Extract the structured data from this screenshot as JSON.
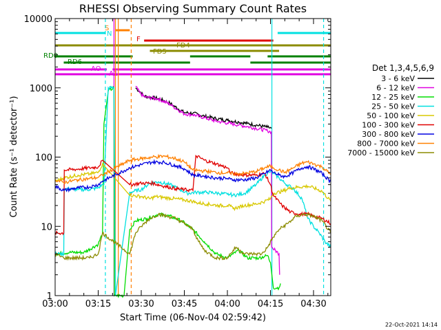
{
  "chart_data": {
    "type": "line",
    "title": "RHESSI Observing Summary Count Rates",
    "xlabel": "Start Time (06-Nov-04 02:59:42)",
    "ylabel": "Count Rate (s⁻¹ detector⁻¹)",
    "yscale": "log",
    "xlim_minutes_after_0300": [
      0,
      96
    ],
    "ylim": [
      1,
      10000
    ],
    "x_ticks": [
      "03:00",
      "03:15",
      "03:30",
      "03:45",
      "04:00",
      "04:15",
      "04:30"
    ],
    "x_tick_minutes": [
      0,
      15,
      30,
      45,
      60,
      75,
      90
    ],
    "y_ticks": [
      "1",
      "10",
      "100",
      "1000",
      "10000"
    ],
    "y_tick_values": [
      1,
      10,
      100,
      1000,
      10000
    ],
    "grid": false,
    "legend_title": "Det 1,3,4,5,6,9",
    "legend_position": "right",
    "series": [
      {
        "name": "3 - 6 keV",
        "color": "#000000",
        "points": [
          [
            28,
            1000
          ],
          [
            29.5,
            880
          ],
          [
            31,
            760
          ],
          [
            36,
            700
          ],
          [
            40,
            600
          ],
          [
            41,
            560
          ],
          [
            45,
            440
          ],
          [
            48,
            430
          ],
          [
            52,
            390
          ],
          [
            56,
            360
          ],
          [
            60,
            340
          ],
          [
            64,
            320
          ],
          [
            67,
            305
          ],
          [
            70,
            290
          ],
          [
            74,
            270
          ],
          [
            75.3,
            260
          ]
        ]
      },
      {
        "name": "6 - 12 keV",
        "color": "#e000e0",
        "points": [
          [
            28,
            1050
          ],
          [
            29.5,
            850
          ],
          [
            31,
            740
          ],
          [
            36,
            690
          ],
          [
            40,
            580
          ],
          [
            41,
            540
          ],
          [
            45,
            420
          ],
          [
            48,
            410
          ],
          [
            52,
            370
          ],
          [
            56,
            330
          ],
          [
            60,
            310
          ],
          [
            64,
            290
          ],
          [
            67,
            275
          ],
          [
            70,
            260
          ],
          [
            74,
            240
          ],
          [
            75.3,
            230
          ],
          [
            75.4,
            5
          ],
          [
            78,
            4
          ],
          [
            78.2,
            2
          ]
        ]
      },
      {
        "name": "12 - 25 keV",
        "color": "#00dd00",
        "points": [
          [
            0,
            4
          ],
          [
            5,
            4.2
          ],
          [
            10,
            4.2
          ],
          [
            15,
            5.5
          ],
          [
            16.5,
            8
          ],
          [
            17,
            300
          ],
          [
            18.5,
            900
          ],
          [
            20.5,
            1000
          ],
          [
            20.6,
            1
          ],
          [
            24,
            1
          ],
          [
            26,
            9
          ],
          [
            28,
            12
          ],
          [
            32,
            13
          ],
          [
            36,
            15
          ],
          [
            40,
            14
          ],
          [
            44,
            12
          ],
          [
            48,
            9
          ],
          [
            52,
            6
          ],
          [
            56,
            4
          ],
          [
            60,
            3.5
          ],
          [
            62,
            4
          ],
          [
            64,
            4.5
          ],
          [
            67,
            3.5
          ],
          [
            71,
            3.5
          ],
          [
            74,
            3.8
          ],
          [
            75,
            3
          ],
          [
            76,
            1.3
          ],
          [
            78,
            1.3
          ],
          [
            78.5,
            1.5
          ]
        ]
      },
      {
        "name": "25 - 50 keV",
        "color": "#00e0e0",
        "points": [
          [
            0,
            4
          ],
          [
            3,
            4
          ],
          [
            3.2,
            35
          ],
          [
            8,
            34
          ],
          [
            12,
            34
          ],
          [
            15,
            36
          ],
          [
            16.5,
            40
          ],
          [
            17,
            40
          ],
          [
            18.5,
            1000
          ],
          [
            20.5,
            1000
          ],
          [
            21,
            1
          ],
          [
            26,
            31
          ],
          [
            30,
            34
          ],
          [
            33,
            42
          ],
          [
            36,
            44
          ],
          [
            40,
            40
          ],
          [
            43,
            35
          ],
          [
            46,
            30
          ],
          [
            49,
            31
          ],
          [
            53,
            31
          ],
          [
            57,
            30
          ],
          [
            60,
            29
          ],
          [
            61,
            29
          ],
          [
            62,
            28
          ],
          [
            66,
            30
          ],
          [
            70,
            40
          ],
          [
            73,
            55
          ],
          [
            75,
            62
          ],
          [
            76,
            58
          ],
          [
            78,
            50
          ],
          [
            80,
            42
          ],
          [
            83,
            35
          ],
          [
            86,
            25
          ],
          [
            88,
            13
          ],
          [
            90,
            10
          ],
          [
            92,
            8
          ],
          [
            94,
            6
          ],
          [
            96,
            5
          ]
        ]
      },
      {
        "name": "50 - 100 keV",
        "color": "#d8c800",
        "points": [
          [
            0,
            45
          ],
          [
            3,
            50
          ],
          [
            8,
            55
          ],
          [
            12,
            57
          ],
          [
            15,
            60
          ],
          [
            16.5,
            80
          ],
          [
            26,
            28
          ],
          [
            30,
            27
          ],
          [
            33,
            25
          ],
          [
            35,
            27
          ],
          [
            38,
            26
          ],
          [
            42,
            25
          ],
          [
            45,
            24
          ],
          [
            48,
            23
          ],
          [
            49,
            22
          ],
          [
            53,
            21
          ],
          [
            57,
            20
          ],
          [
            60,
            20
          ],
          [
            61,
            19.5
          ],
          [
            62,
            18
          ],
          [
            66,
            20
          ],
          [
            70,
            21
          ],
          [
            73,
            23
          ],
          [
            75,
            25
          ],
          [
            76,
            30
          ],
          [
            79,
            32
          ],
          [
            82,
            36
          ],
          [
            85,
            37
          ],
          [
            88,
            38
          ],
          [
            90,
            36
          ],
          [
            93,
            32
          ],
          [
            96,
            23
          ]
        ]
      },
      {
        "name": "100 - 300 keV",
        "color": "#e00000",
        "points": [
          [
            0,
            8
          ],
          [
            3,
            8
          ],
          [
            3.2,
            65
          ],
          [
            8,
            67
          ],
          [
            12,
            70
          ],
          [
            15,
            72
          ],
          [
            16.5,
            90
          ],
          [
            26,
            40
          ],
          [
            30,
            42
          ],
          [
            34,
            42
          ],
          [
            38,
            38
          ],
          [
            42,
            35
          ],
          [
            45,
            34
          ],
          [
            48,
            33
          ],
          [
            49,
            105
          ],
          [
            52,
            90
          ],
          [
            56,
            80
          ],
          [
            60,
            70
          ],
          [
            61,
            60
          ],
          [
            62,
            58
          ],
          [
            66,
            55
          ],
          [
            70,
            55
          ],
          [
            73,
            58
          ],
          [
            75,
            40
          ],
          [
            76,
            28
          ],
          [
            79,
            20
          ],
          [
            82,
            16
          ],
          [
            85,
            15
          ],
          [
            88,
            15
          ],
          [
            90,
            14
          ],
          [
            93,
            13
          ],
          [
            96,
            11
          ]
        ]
      },
      {
        "name": "300 - 800 keV",
        "color": "#0000e0",
        "points": [
          [
            0,
            38
          ],
          [
            3,
            33
          ],
          [
            8,
            36
          ],
          [
            12,
            37
          ],
          [
            15,
            40
          ],
          [
            16.5,
            45
          ],
          [
            26,
            70
          ],
          [
            30,
            78
          ],
          [
            34,
            85
          ],
          [
            38,
            84
          ],
          [
            42,
            75
          ],
          [
            45,
            68
          ],
          [
            48,
            55
          ],
          [
            52,
            53
          ],
          [
            56,
            50
          ],
          [
            60,
            49
          ],
          [
            61,
            48
          ],
          [
            62,
            47
          ],
          [
            66,
            47
          ],
          [
            70,
            50
          ],
          [
            73,
            58
          ],
          [
            75,
            65
          ],
          [
            76,
            60
          ],
          [
            78,
            55
          ],
          [
            80,
            52
          ],
          [
            83,
            60
          ],
          [
            86,
            70
          ],
          [
            88,
            73
          ],
          [
            90,
            68
          ],
          [
            93,
            58
          ],
          [
            96,
            44
          ]
        ]
      },
      {
        "name": "800 - 7000 keV",
        "color": "#ff8000",
        "points": [
          [
            0,
            47
          ],
          [
            3,
            43
          ],
          [
            8,
            47
          ],
          [
            12,
            49
          ],
          [
            15,
            51
          ],
          [
            16.5,
            55
          ],
          [
            26,
            90
          ],
          [
            30,
            95
          ],
          [
            34,
            100
          ],
          [
            38,
            103
          ],
          [
            42,
            95
          ],
          [
            45,
            85
          ],
          [
            48,
            65
          ],
          [
            52,
            63
          ],
          [
            56,
            60
          ],
          [
            60,
            59
          ],
          [
            61,
            58
          ],
          [
            62,
            57
          ],
          [
            66,
            58
          ],
          [
            70,
            62
          ],
          [
            73,
            70
          ],
          [
            75,
            74
          ],
          [
            76,
            70
          ],
          [
            78,
            65
          ],
          [
            80,
            60
          ],
          [
            83,
            70
          ],
          [
            86,
            82
          ],
          [
            88,
            85
          ],
          [
            90,
            80
          ],
          [
            93,
            72
          ],
          [
            96,
            56
          ]
        ]
      },
      {
        "name": "7000 - 15000 keV",
        "color": "#8b8b00",
        "points": [
          [
            0,
            4
          ],
          [
            3,
            3.5
          ],
          [
            8,
            3.5
          ],
          [
            12,
            3.5
          ],
          [
            15,
            4
          ],
          [
            16.5,
            8
          ],
          [
            26,
            4
          ],
          [
            28,
            8
          ],
          [
            30,
            10
          ],
          [
            33,
            13
          ],
          [
            36,
            15
          ],
          [
            39,
            14
          ],
          [
            42,
            13
          ],
          [
            45,
            11
          ],
          [
            48,
            9
          ],
          [
            50,
            6
          ],
          [
            52,
            4.5
          ],
          [
            56,
            3.5
          ],
          [
            60,
            3.5
          ],
          [
            61,
            4
          ],
          [
            63,
            5
          ],
          [
            66,
            4
          ],
          [
            68,
            4
          ],
          [
            70,
            4
          ],
          [
            72,
            4
          ],
          [
            74,
            5
          ],
          [
            76,
            7
          ],
          [
            78,
            9
          ],
          [
            81,
            11
          ],
          [
            84,
            14
          ],
          [
            87,
            15
          ],
          [
            90,
            14
          ],
          [
            93,
            12
          ],
          [
            96,
            8
          ]
        ]
      }
    ],
    "vertical_markers": [
      {
        "color": "#00e0e0",
        "style": "dashed",
        "minute": 17.5
      },
      {
        "color": "#00e0e0",
        "style": "dashed",
        "minute": 93.5
      },
      {
        "color": "#ff8000",
        "style": "dashed",
        "minute": 26.5
      },
      {
        "color": "#ff8000",
        "style": "solid",
        "minute": 21
      },
      {
        "color": "#ff8000",
        "style": "solid",
        "minute": 22
      },
      {
        "color": "#e000e0",
        "style": "solid",
        "minute": 20.5
      },
      {
        "color": "#00e0e0",
        "style": "solid",
        "minute": 75.5
      }
    ],
    "flag_bars": [
      {
        "label": "",
        "color": "#00e0e0",
        "segments": [
          [
            0,
            17.5
          ],
          [
            77.5,
            96
          ]
        ]
      },
      {
        "label": "S",
        "color": "#ff8000",
        "segments": [
          [
            21,
            26
          ]
        ]
      },
      {
        "label": "N",
        "color": "#00e0e0",
        "segments": []
      },
      {
        "label": "F",
        "color": "#e00000",
        "segments": [
          [
            31,
            76
          ]
        ]
      },
      {
        "label": "FD4",
        "color": "#8b8b00",
        "segments": [
          [
            0,
            96
          ]
        ]
      },
      {
        "label": "FD5",
        "color": "#8b8b00",
        "segments": [
          [
            33,
            78
          ]
        ]
      },
      {
        "label": "RD0",
        "color": "#008000",
        "segments": [
          [
            0,
            27
          ],
          [
            47,
            68
          ],
          [
            74,
            96
          ]
        ]
      },
      {
        "label": "RD6",
        "color": "#008000",
        "segments": [
          [
            3,
            27
          ],
          [
            27,
            47
          ],
          [
            68,
            96
          ]
        ]
      },
      {
        "label": "AO",
        "color": "#e000e0",
        "segments": [
          [
            0,
            18
          ],
          [
            20,
            96
          ]
        ]
      },
      {
        "label": "A1",
        "color": "#e000e0",
        "segments": [
          [
            0,
            96
          ]
        ]
      }
    ],
    "footer": "22-Oct-2021 14:14"
  }
}
